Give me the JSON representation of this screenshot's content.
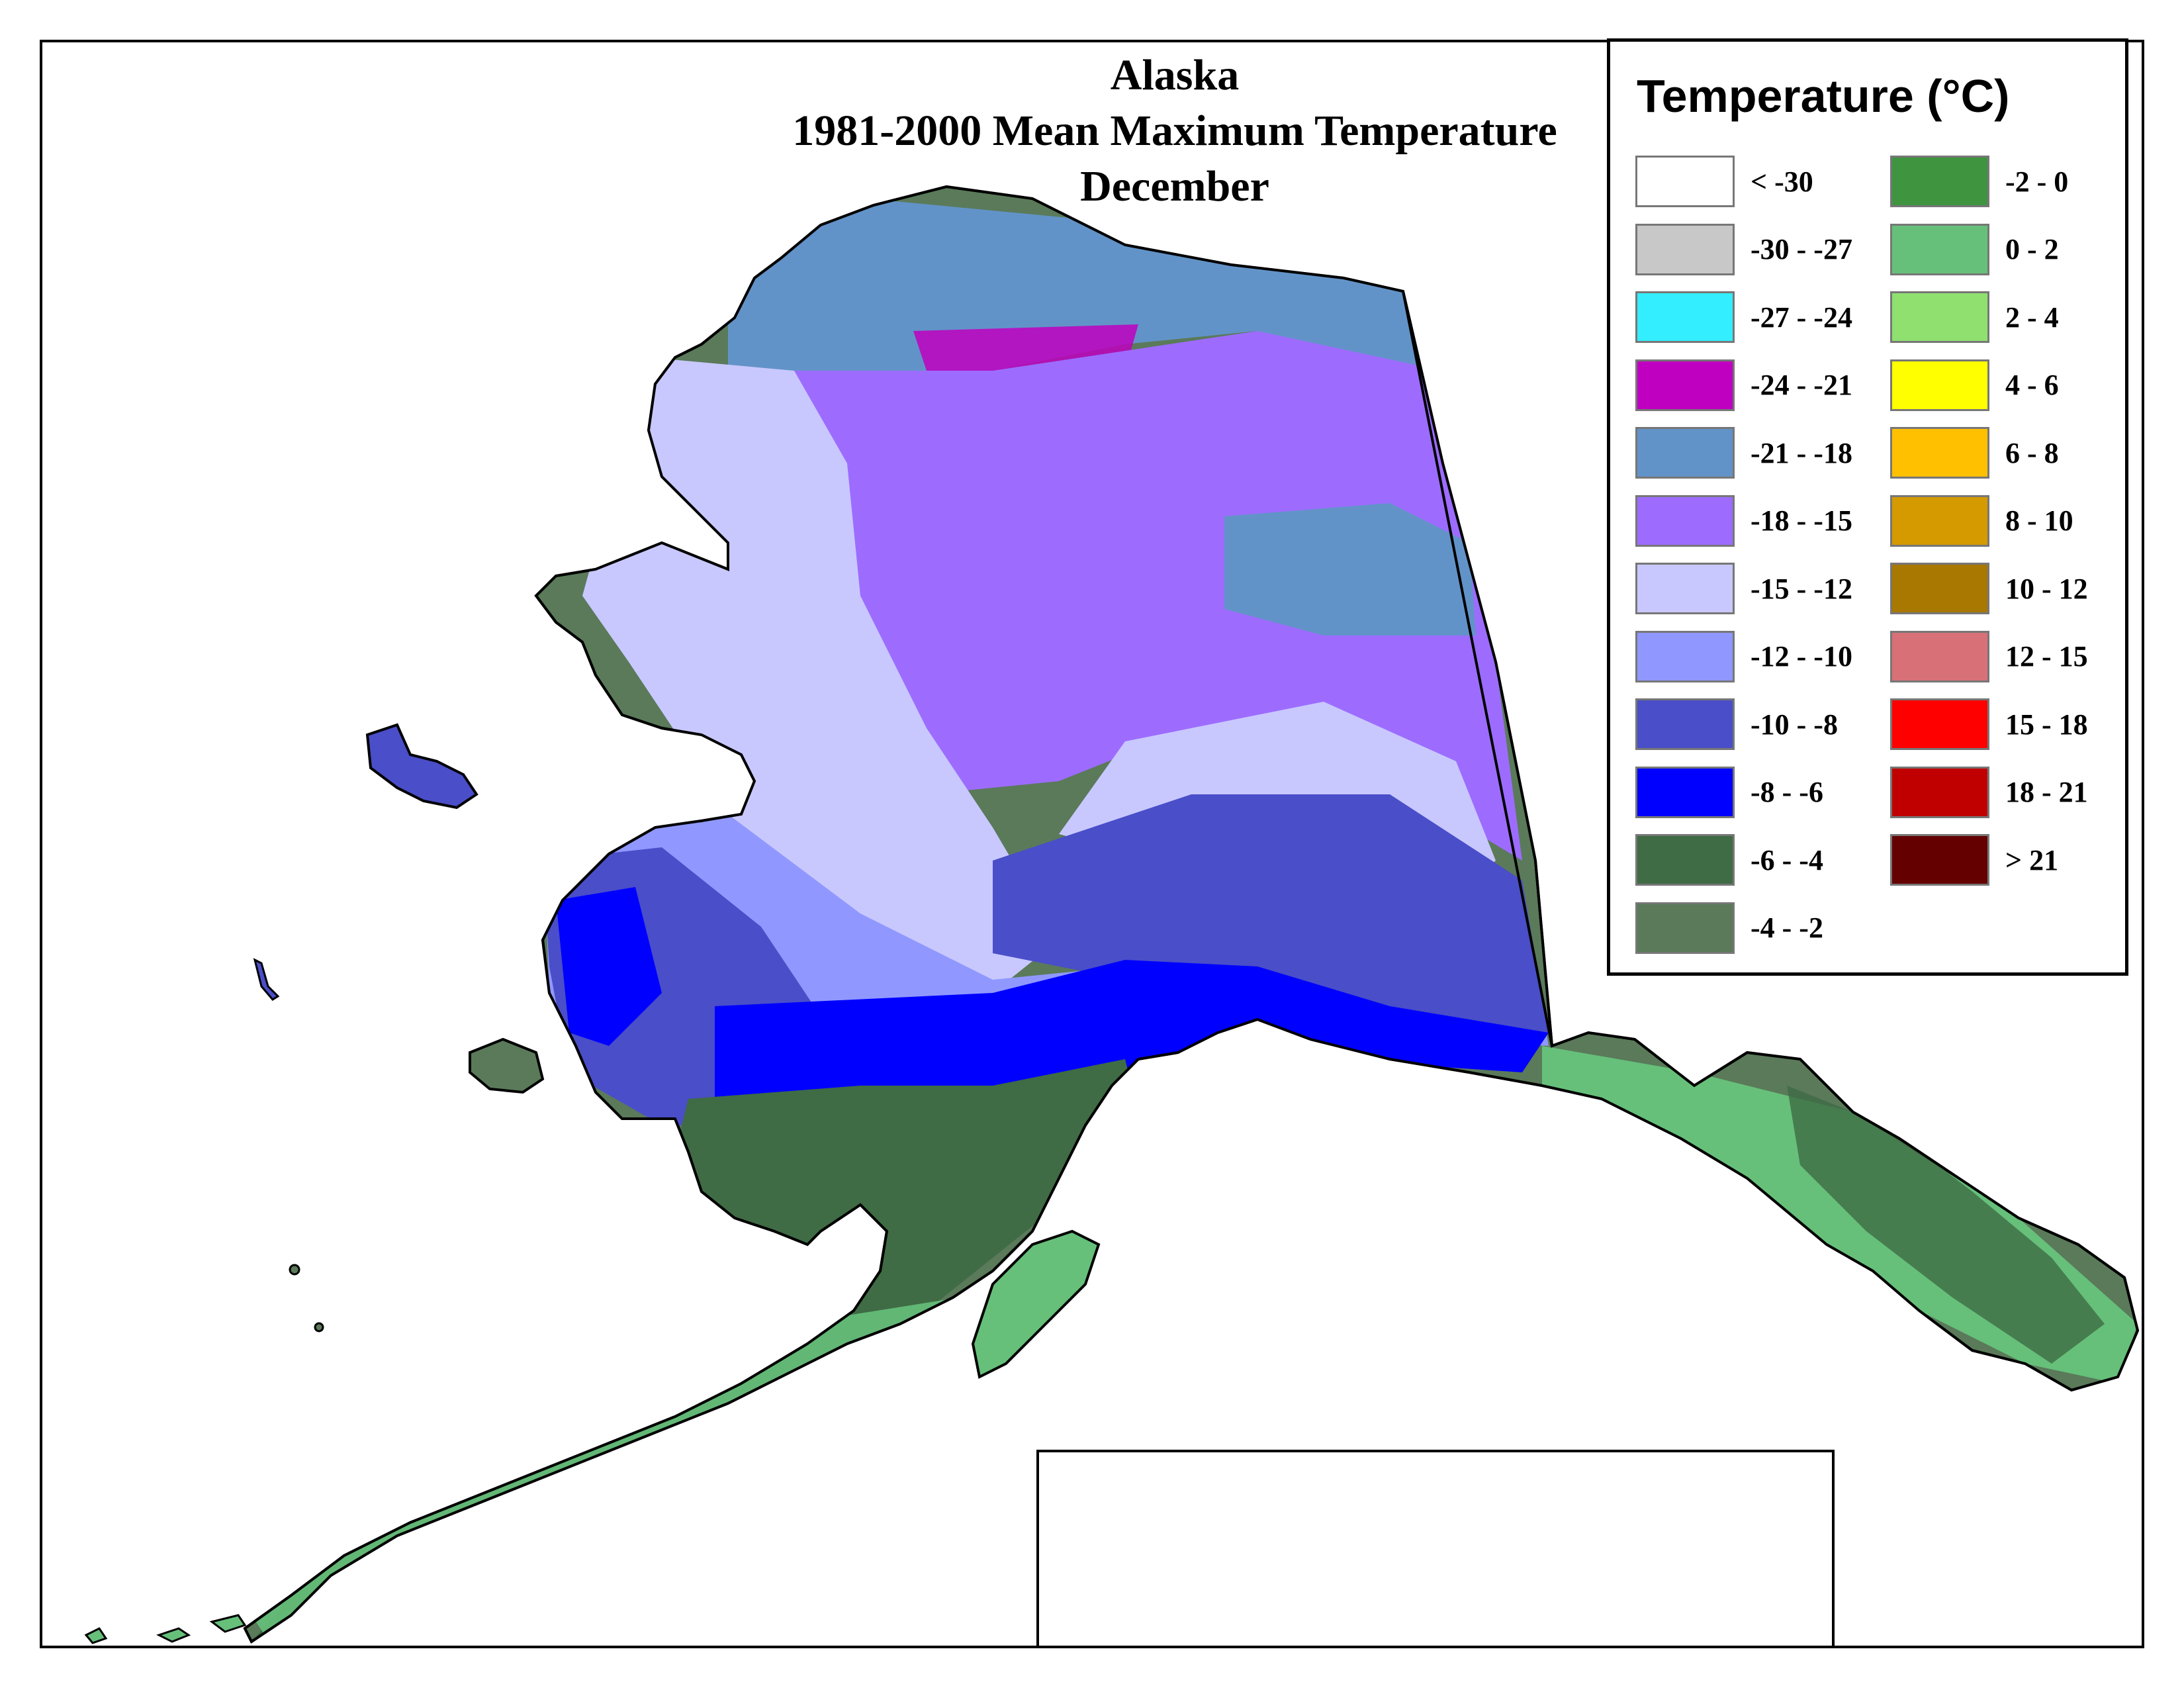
{
  "title": {
    "line1": "Alaska",
    "line2": "1981-2000 Mean Maximum Temperature",
    "line3": "December"
  },
  "legend": {
    "title": "Temperature (°C)",
    "items": [
      {
        "label": "< -30",
        "color": "#ffffff"
      },
      {
        "label": "-30 - -27",
        "color": "#c8c8c8"
      },
      {
        "label": "-27 - -24",
        "color": "#33eeff"
      },
      {
        "label": "-24 - -21",
        "color": "#c000c0"
      },
      {
        "label": "-21 - -18",
        "color": "#6293c8"
      },
      {
        "label": "-18 - -15",
        "color": "#9d6cff"
      },
      {
        "label": "-15 - -12",
        "color": "#c8c8ff"
      },
      {
        "label": "-12 - -10",
        "color": "#9098ff"
      },
      {
        "label": "-10 - -8",
        "color": "#4a4ec8"
      },
      {
        "label": "-8 - -6",
        "color": "#0000ff"
      },
      {
        "label": "-6 - -4",
        "color": "#3f6b45"
      },
      {
        "label": "-4 - -2",
        "color": "#5a7a5a"
      },
      {
        "label": "-2 - 0",
        "color": "#3f9440"
      },
      {
        "label": "0 - 2",
        "color": "#66c07a"
      },
      {
        "label": "2 - 4",
        "color": "#90e070"
      },
      {
        "label": "4 - 6",
        "color": "#ffff00"
      },
      {
        "label": "6 - 8",
        "color": "#ffc000"
      },
      {
        "label": "8 - 10",
        "color": "#d49a00"
      },
      {
        "label": "10 - 12",
        "color": "#a87800"
      },
      {
        "label": "12 - 15",
        "color": "#d87078"
      },
      {
        "label": "15 - 18",
        "color": "#ff0000"
      },
      {
        "label": "18 - 21",
        "color": "#c00000"
      },
      {
        "label": "> 21",
        "color": "#640000"
      }
    ]
  }
}
